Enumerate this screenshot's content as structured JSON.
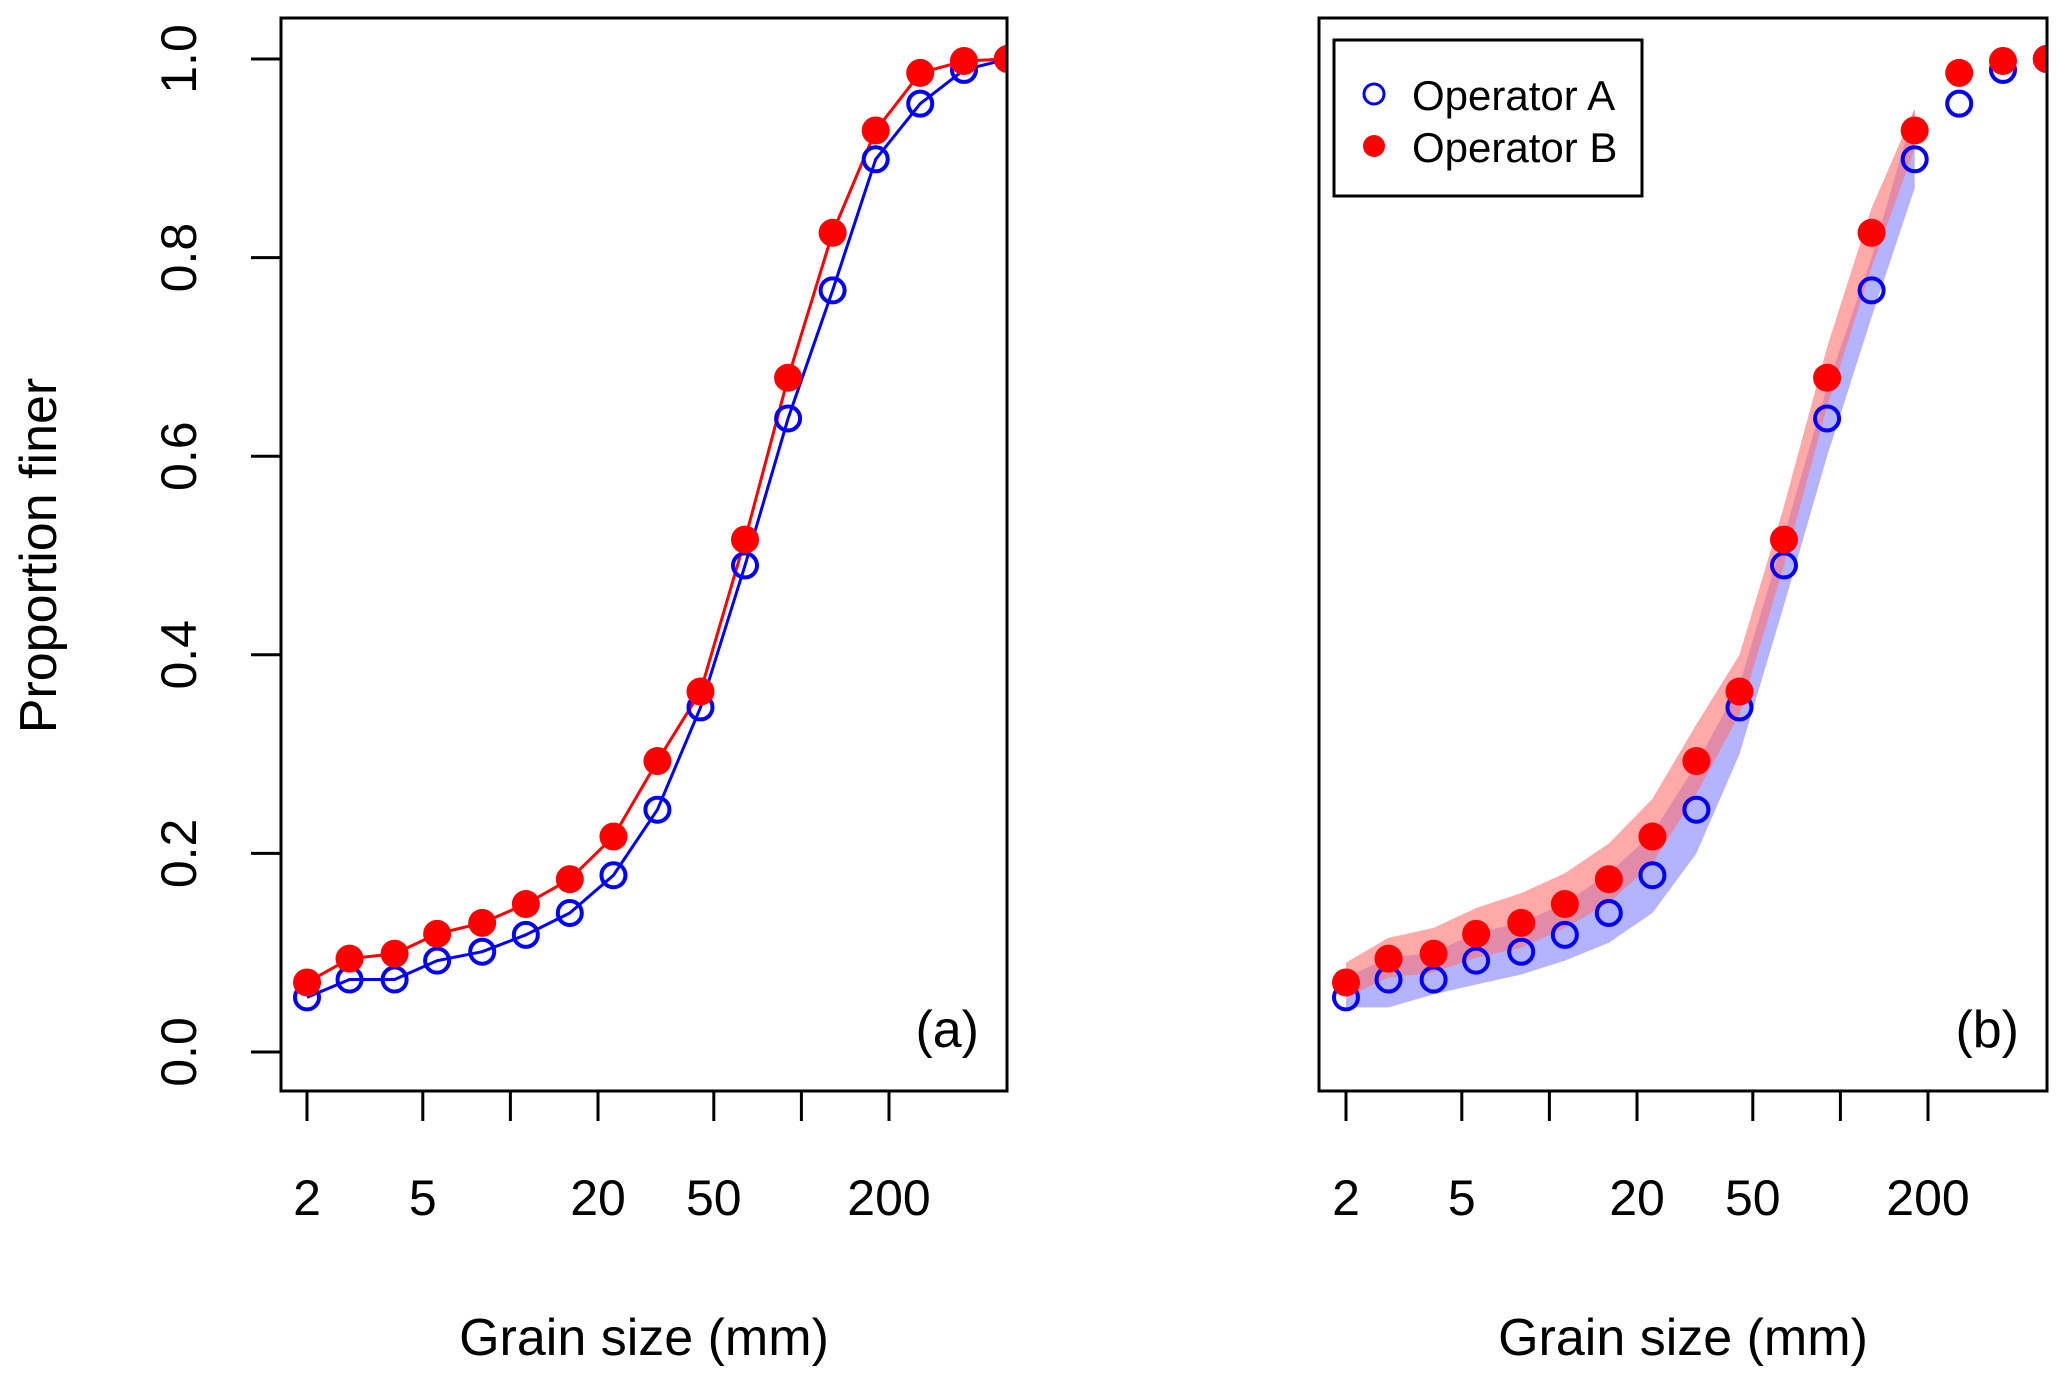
{
  "chart_data": [
    {
      "panel": "(a)",
      "type": "line",
      "xlabel": "Grain size (mm)",
      "ylabel": "Proportion finer",
      "xscale": "log",
      "xlim": [
        2,
        512
      ],
      "ylim": [
        0,
        1
      ],
      "xticks": [
        2,
        5,
        10,
        20,
        50,
        100,
        200
      ],
      "xtick_labels": [
        "2",
        "5",
        "",
        "20",
        "50",
        "",
        "200"
      ],
      "yticks": [
        0,
        0.2,
        0.4,
        0.6,
        0.8,
        1.0
      ],
      "ytick_labels": [
        "0.0",
        "0.2",
        "0.4",
        "0.6",
        "0.8",
        "1.0"
      ],
      "x": [
        2,
        2.8,
        4,
        5.6,
        8,
        11.3,
        16,
        22.6,
        32,
        45,
        64,
        90,
        128,
        180,
        256,
        362,
        512
      ],
      "series": [
        {
          "name": "Operator A",
          "color": "#0000ff",
          "marker": "open-circle",
          "values": [
            0.055,
            0.073,
            0.073,
            0.092,
            0.101,
            0.118,
            0.14,
            0.178,
            0.244,
            0.347,
            0.49,
            0.638,
            0.767,
            0.899,
            0.955,
            0.989,
            1.0
          ]
        },
        {
          "name": "Operator B",
          "color": "#ff0000",
          "marker": "filled-circle",
          "values": [
            0.07,
            0.094,
            0.099,
            0.119,
            0.13,
            0.149,
            0.174,
            0.217,
            0.293,
            0.363,
            0.516,
            0.679,
            0.825,
            0.928,
            0.986,
            0.998,
            1.0
          ]
        }
      ]
    },
    {
      "panel": "(b)",
      "type": "scatter",
      "xlabel": "Grain size (mm)",
      "xscale": "log",
      "xlim": [
        2,
        512
      ],
      "ylim": [
        0,
        1
      ],
      "xticks": [
        2,
        5,
        10,
        20,
        50,
        100,
        200
      ],
      "xtick_labels": [
        "2",
        "5",
        "",
        "20",
        "50",
        "",
        "200"
      ],
      "legend": {
        "placement": "top-left",
        "entries": [
          "Operator A",
          "Operator B"
        ]
      },
      "x": [
        2,
        2.8,
        4,
        5.6,
        8,
        11.3,
        16,
        22.6,
        32,
        45,
        64,
        90,
        128,
        180,
        256,
        362,
        512
      ],
      "series": [
        {
          "name": "Operator A",
          "color": "#0000ff",
          "marker": "open-circle",
          "values": [
            0.055,
            0.073,
            0.073,
            0.092,
            0.101,
            0.118,
            0.14,
            0.178,
            0.244,
            0.347,
            0.49,
            0.638,
            0.767,
            0.899,
            0.955,
            0.989,
            1.0
          ],
          "band_color": "#8080ff",
          "band_lower": [
            0.045,
            0.045,
            0.058,
            0.068,
            0.078,
            0.092,
            0.11,
            0.14,
            0.2,
            0.3,
            0.45,
            0.6,
            0.74,
            0.87
          ],
          "band_upper": [
            0.075,
            0.095,
            0.1,
            0.12,
            0.13,
            0.15,
            0.18,
            0.22,
            0.29,
            0.37,
            0.52,
            0.67,
            0.8,
            0.95
          ]
        },
        {
          "name": "Operator B",
          "color": "#ff0000",
          "marker": "filled-circle",
          "values": [
            0.07,
            0.094,
            0.099,
            0.119,
            0.13,
            0.149,
            0.174,
            0.217,
            0.293,
            0.363,
            0.516,
            0.679,
            0.825,
            0.928,
            0.986,
            0.998,
            1.0
          ],
          "band_color": "#ff7070",
          "band_lower": [
            0.055,
            0.075,
            0.08,
            0.095,
            0.105,
            0.125,
            0.15,
            0.19,
            0.26,
            0.34,
            0.49,
            0.65,
            0.79,
            0.91
          ],
          "band_upper": [
            0.09,
            0.115,
            0.125,
            0.145,
            0.16,
            0.18,
            0.21,
            0.255,
            0.33,
            0.4,
            0.55,
            0.71,
            0.85,
            0.95
          ]
        }
      ]
    }
  ]
}
